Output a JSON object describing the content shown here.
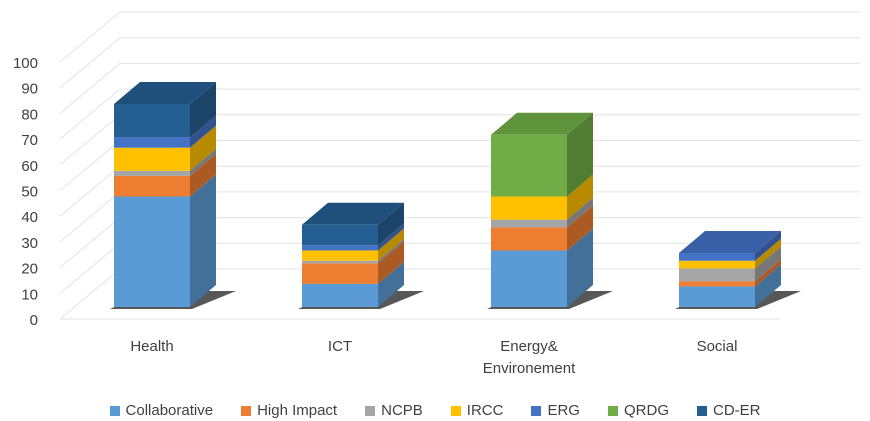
{
  "chart_data": {
    "type": "bar",
    "stacked": true,
    "three_d": true,
    "categories": [
      "Health",
      "ICT",
      "Energy&\nEnvironement",
      "Social"
    ],
    "series": [
      {
        "name": "Collaborative",
        "color": "#5B9BD5",
        "values": [
          43,
          9,
          22,
          8
        ]
      },
      {
        "name": "High Impact",
        "color": "#ED7D31",
        "values": [
          8,
          8,
          9,
          2
        ]
      },
      {
        "name": "NCPB",
        "color": "#A5A5A5",
        "values": [
          2,
          1,
          3,
          5
        ]
      },
      {
        "name": "IRCC",
        "color": "#FFC000",
        "values": [
          9,
          4,
          9,
          3
        ]
      },
      {
        "name": "ERG",
        "color": "#4472C4",
        "values": [
          4,
          2,
          0,
          3
        ]
      },
      {
        "name": "QRDG",
        "color": "#70AD47",
        "values": [
          0,
          0,
          24,
          0
        ]
      },
      {
        "name": "CD-ER",
        "color": "#255E91",
        "values": [
          13,
          8,
          0,
          0
        ]
      }
    ],
    "ylim": [
      0,
      100
    ],
    "yticks": [
      "0",
      "10",
      "20",
      "30",
      "40",
      "50",
      "60",
      "70",
      "80",
      "90",
      "100"
    ],
    "grid": true,
    "legend_position": "bottom"
  }
}
